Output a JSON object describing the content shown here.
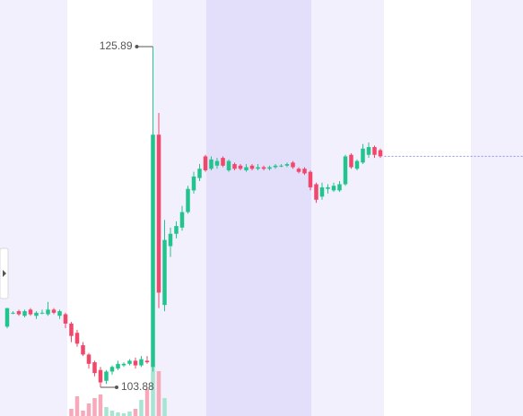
{
  "chart_data": {
    "type": "candlestick",
    "open": [
      107.8,
      108.7,
      108.8,
      108.5,
      108.9,
      108.5,
      108.7,
      108.6,
      108.9,
      108.5,
      108.6,
      108.0,
      107.4,
      106.6,
      106.0,
      105.5,
      105.0,
      104.3,
      104.9,
      105.1,
      105.3,
      105.4,
      105.6,
      105.3,
      105.6,
      105.2,
      120.2,
      109.2,
      113.0,
      113.8,
      114.2,
      115.2,
      116.6,
      117.4,
      118.8,
      118.0,
      118.2,
      118.7,
      117.9,
      118.3,
      118.2,
      117.9,
      118.2,
      118.0,
      118.1,
      118.0,
      118.1,
      118.2,
      118.2,
      118.4,
      118.0,
      118.0,
      117.8,
      117.0,
      116.2,
      116.7,
      116.6,
      116.6,
      117.0,
      118.9,
      118.0,
      118.4,
      118.9,
      119.4,
      119.2
    ],
    "high": [
      109.0,
      108.8,
      108.9,
      108.9,
      109.0,
      108.8,
      108.9,
      109.4,
      109.0,
      108.9,
      108.7,
      108.1,
      107.6,
      106.8,
      106.1,
      105.6,
      105.2,
      105.0,
      105.3,
      105.6,
      105.5,
      105.7,
      105.8,
      105.9,
      105.9,
      125.89,
      121.6,
      114.7,
      114.2,
      114.6,
      115.6,
      116.9,
      117.8,
      118.3,
      118.9,
      118.8,
      118.7,
      118.8,
      118.6,
      118.4,
      118.3,
      118.3,
      118.3,
      118.3,
      118.2,
      118.2,
      118.3,
      118.3,
      118.4,
      118.5,
      118.1,
      118.1,
      117.9,
      117.1,
      117.1,
      117.0,
      117.1,
      117.2,
      118.9,
      119.0,
      118.6,
      119.6,
      119.7,
      119.5,
      119.3
    ],
    "low": [
      107.7,
      108.6,
      108.5,
      108.4,
      108.5,
      108.3,
      108.6,
      108.5,
      108.6,
      108.3,
      107.7,
      106.8,
      106.5,
      105.9,
      105.1,
      104.6,
      103.88,
      104.1,
      104.7,
      105.0,
      105.2,
      105.3,
      105.1,
      105.2,
      105.4,
      104.9,
      109.0,
      108.8,
      112.3,
      113.5,
      114.0,
      115.1,
      116.4,
      117.2,
      117.8,
      117.9,
      118.0,
      118.1,
      117.8,
      117.9,
      117.9,
      117.8,
      117.9,
      117.9,
      117.9,
      117.9,
      118.0,
      118.1,
      118.1,
      118.0,
      117.7,
      117.6,
      116.6,
      115.8,
      116.0,
      116.4,
      116.5,
      116.5,
      116.9,
      118.0,
      117.9,
      118.3,
      118.7,
      118.7,
      118.7
    ],
    "close": [
      109.0,
      108.7,
      108.6,
      108.8,
      108.6,
      108.7,
      108.7,
      108.9,
      108.7,
      108.8,
      108.0,
      107.2,
      106.7,
      106.0,
      105.4,
      104.8,
      104.2,
      104.9,
      105.2,
      105.4,
      105.4,
      105.6,
      105.3,
      105.7,
      105.5,
      120.2,
      110.0,
      113.4,
      113.8,
      114.3,
      115.2,
      116.7,
      117.5,
      118.0,
      117.9,
      118.6,
      118.5,
      118.2,
      118.5,
      118.0,
      118.0,
      118.1,
      118.0,
      118.1,
      118.0,
      118.1,
      118.2,
      118.2,
      118.3,
      118.1,
      117.8,
      117.7,
      116.8,
      116.0,
      116.8,
      116.8,
      116.9,
      117.0,
      118.8,
      118.1,
      118.5,
      119.3,
      119.4,
      118.9,
      118.8
    ],
    "volume": [
      0,
      0,
      0,
      0,
      0,
      0,
      0,
      0,
      0,
      0,
      0,
      8,
      22,
      6,
      14,
      20,
      24,
      10,
      6,
      4,
      3,
      5,
      8,
      18,
      30,
      55,
      50,
      20,
      0,
      0,
      0,
      0,
      0,
      0,
      0,
      0,
      0,
      0,
      0,
      0,
      0,
      0,
      0,
      0,
      0,
      0,
      0,
      0,
      0,
      0,
      0,
      0,
      0,
      0,
      0,
      0,
      0,
      0,
      0,
      0,
      0,
      0,
      0,
      0,
      0
    ],
    "ylim": [
      102.03,
      128.9
    ],
    "vlim": [
      0,
      100
    ],
    "up_color": "#22c48e",
    "down_color": "#f0476a",
    "up_volume_color": "#a8e4d2",
    "down_volume_color": "#f7a9ba",
    "last_price_line": true
  }
}
